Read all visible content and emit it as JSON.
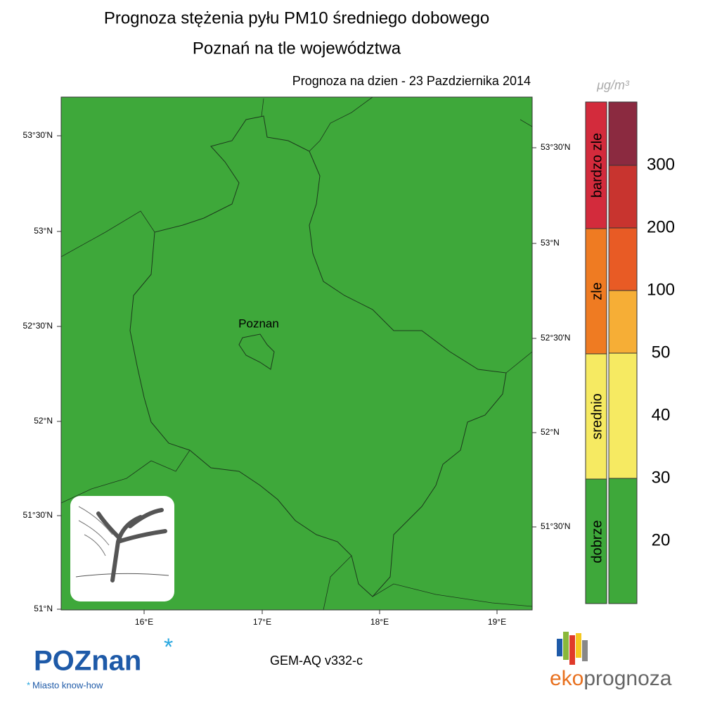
{
  "title": {
    "line1": "Prognoza stężenia pyłu PM10 średniego dobowego",
    "line2": "Poznań na tle województwa"
  },
  "forecast_date": "Prognoza na dzien -  23 Pazdziernika 2014",
  "map": {
    "city_label": "Poznan",
    "lat_labels_left": [
      "53°30'N",
      "53°N",
      "52°30'N",
      "52°N",
      "51°30'N",
      "51°N"
    ],
    "lat_labels_right": [
      "53°30'N",
      "53°N",
      "52°30'N",
      "52°N",
      "51°30'N"
    ],
    "lon_labels": [
      "16°E",
      "17°E",
      "18°E",
      "19°E"
    ]
  },
  "legend": {
    "unit": "μg/m³",
    "categories": [
      "bardzo zle",
      "zle",
      "srednio",
      "dobrze"
    ],
    "levels": [
      300,
      200,
      100,
      50,
      40,
      30,
      20
    ]
  },
  "footer": {
    "model": "GEM-AQ v332-c",
    "logo_left": "POZnan",
    "logo_left_tagline": "Miasto know-how",
    "logo_right_a": "eko",
    "logo_right_b": "prognoza"
  }
}
